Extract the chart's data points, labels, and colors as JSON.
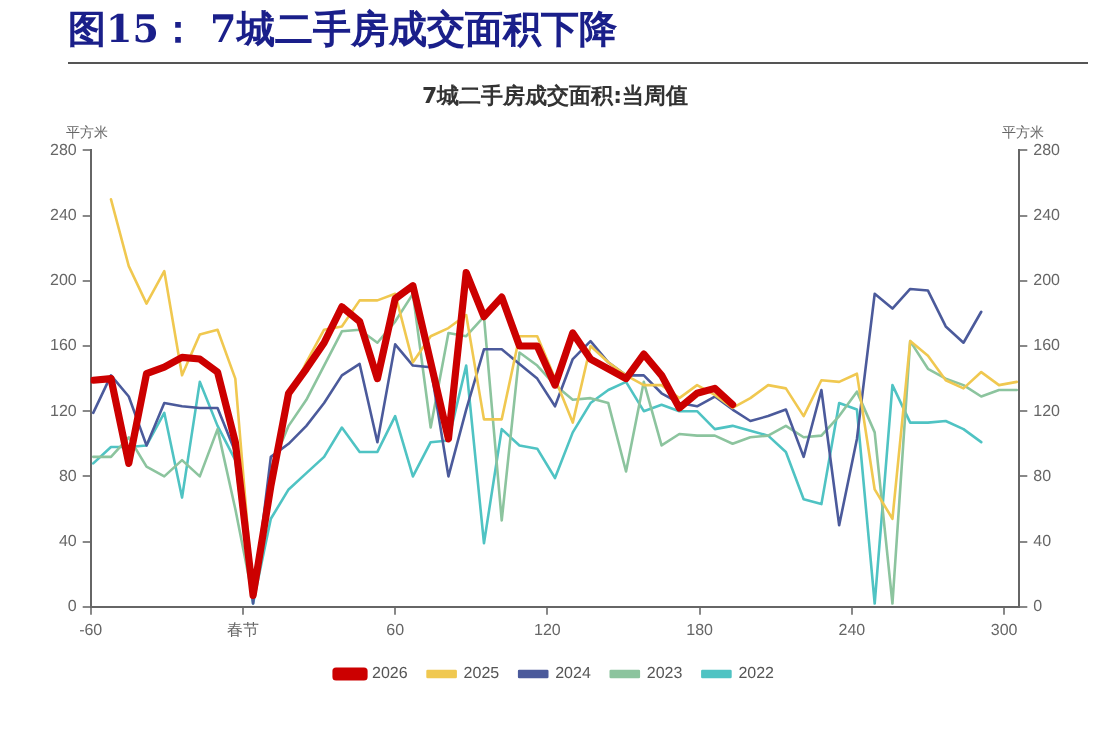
{
  "chart_data": {
    "type": "line",
    "title": "图15： 7城二手房成交面积下降",
    "subtitle": "7城二手房成交面积:当周值",
    "ylabel": "平方米",
    "y2label": "平方米",
    "x": [
      -59,
      -52,
      -45,
      -38,
      -31,
      -24,
      -17,
      -10,
      -3,
      4,
      11,
      18,
      25,
      32,
      39,
      46,
      53,
      60,
      67,
      74,
      81,
      88,
      95,
      102,
      109,
      116,
      123,
      130,
      137,
      144,
      151,
      158,
      165,
      172,
      179,
      186,
      193,
      200,
      207,
      214,
      221,
      228,
      235,
      242,
      249,
      256,
      263,
      270,
      277,
      284,
      291,
      298,
      305
    ],
    "series": [
      {
        "name": "2022",
        "color": "#4fc3c3",
        "values": [
          88,
          98,
          98,
          99,
          119,
          67,
          138,
          111,
          90,
          2,
          54,
          72,
          82,
          92,
          110,
          95,
          95,
          117,
          80,
          101,
          102,
          148,
          39,
          109,
          99,
          97,
          79,
          107,
          125,
          133,
          138,
          120,
          124,
          120,
          120,
          109,
          111,
          108,
          105,
          95,
          66,
          63,
          125,
          121,
          2,
          136,
          113,
          113,
          114,
          109,
          101,
          null,
          null
        ]
      },
      {
        "name": "2023",
        "color": "#8cc49e",
        "values": [
          92,
          92,
          104,
          86,
          80,
          90,
          80,
          109,
          60,
          5,
          85,
          111,
          127,
          148,
          169,
          170,
          162,
          175,
          192,
          110,
          168,
          166,
          178,
          53,
          156,
          148,
          136,
          127,
          128,
          125,
          83,
          138,
          99,
          106,
          105,
          105,
          100,
          104,
          105,
          111,
          104,
          105,
          117,
          132,
          107,
          2,
          163,
          146,
          140,
          136,
          129,
          133,
          133
        ]
      },
      {
        "name": "2024",
        "color": "#4b5a9b",
        "values": [
          119,
          142,
          129,
          99,
          125,
          123,
          122,
          122,
          95,
          2,
          92,
          100,
          111,
          125,
          142,
          149,
          101,
          161,
          148,
          147,
          80,
          121,
          158,
          158,
          149,
          140,
          123,
          152,
          163,
          150,
          142,
          142,
          131,
          125,
          123,
          129,
          121,
          114,
          117,
          121,
          92,
          133,
          50,
          103,
          192,
          183,
          195,
          194,
          172,
          162,
          181,
          null,
          null
        ]
      },
      {
        "name": "2025",
        "color": "#f0c850",
        "values": [
          null,
          250,
          209,
          186,
          206,
          142,
          167,
          170,
          140,
          8,
          70,
          128,
          150,
          170,
          172,
          188,
          188,
          192,
          150,
          166,
          171,
          179,
          115,
          115,
          166,
          166,
          140,
          113,
          160,
          150,
          142,
          136,
          136,
          128,
          136,
          130,
          122,
          128,
          136,
          134,
          117,
          139,
          138,
          143,
          72,
          54,
          163,
          154,
          139,
          134,
          144,
          136,
          138
        ]
      },
      {
        "name": "2026",
        "color": "#cc0000",
        "values": [
          139,
          140,
          88,
          143,
          147,
          153,
          152,
          144,
          101,
          7,
          74,
          131,
          146,
          162,
          184,
          175,
          140,
          189,
          197,
          150,
          103,
          205,
          178,
          190,
          160,
          160,
          136,
          168,
          152,
          146,
          140,
          155,
          142,
          122,
          131,
          134,
          124,
          null,
          null,
          null,
          null,
          null,
          null,
          null,
          null,
          null,
          null,
          null,
          null,
          null,
          null,
          null,
          null
        ]
      }
    ],
    "xlim": [
      -60,
      306
    ],
    "xticks": [
      -60,
      {
        "value": 0,
        "label": "春节"
      },
      60,
      120,
      180,
      240,
      300
    ],
    "ylim": [
      0,
      280
    ],
    "yticks": [
      0,
      40,
      80,
      120,
      160,
      200,
      240,
      280
    ],
    "y2lim": [
      0,
      280
    ],
    "y2ticks": [
      0,
      40,
      80,
      120,
      160,
      200,
      240,
      280
    ],
    "grid": false,
    "legend": "bottom",
    "marker": "none",
    "line_style": "solid"
  }
}
